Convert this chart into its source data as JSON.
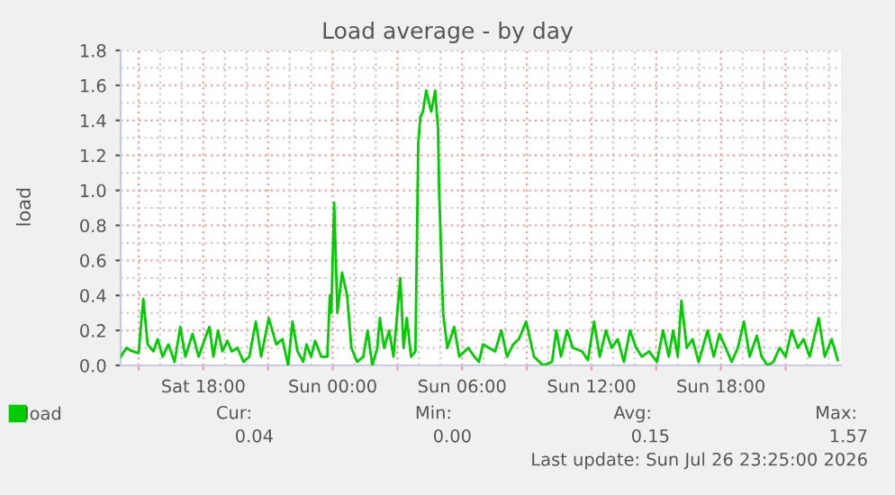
{
  "chart_data": {
    "type": "line",
    "title": "Load average - by day",
    "ylabel": "load",
    "xlim": [
      "2026-07-25T14:10",
      "2026-07-26T23:34"
    ],
    "ylim": [
      0,
      1.8
    ],
    "xticks": [
      {
        "value": "2026-07-25T15:00",
        "label": null
      },
      {
        "value": "2026-07-25T18:00",
        "label": "Sat 18:00"
      },
      {
        "value": "2026-07-25T21:00",
        "label": null
      },
      {
        "value": "2026-07-26T00:00",
        "label": "Sun 00:00"
      },
      {
        "value": "2026-07-26T03:00",
        "label": null
      },
      {
        "value": "2026-07-26T06:00",
        "label": "Sun 06:00"
      },
      {
        "value": "2026-07-26T09:00",
        "label": null
      },
      {
        "value": "2026-07-26T12:00",
        "label": "Sun 12:00"
      },
      {
        "value": "2026-07-26T15:00",
        "label": null
      },
      {
        "value": "2026-07-26T18:00",
        "label": "Sun 18:00"
      },
      {
        "value": "2026-07-26T21:00",
        "label": null
      }
    ],
    "yticks": [
      {
        "value": 0,
        "label": "0.0"
      },
      {
        "value": 0.2,
        "label": "0.2"
      },
      {
        "value": 0.4,
        "label": "0.4"
      },
      {
        "value": 0.6,
        "label": "0.6"
      },
      {
        "value": 0.8,
        "label": "0.8"
      },
      {
        "value": 1.0,
        "label": "1.0"
      },
      {
        "value": 1.2,
        "label": "1.2"
      },
      {
        "value": 1.4,
        "label": "1.4"
      },
      {
        "value": 1.6,
        "label": "1.6"
      },
      {
        "value": 1.8,
        "label": "1.8"
      }
    ],
    "grid": true,
    "legend": "bottom left",
    "marker": "none",
    "line_style": "solid",
    "series": [
      {
        "name": "load",
        "color": "#00cc00",
        "x": [
          "2026-07-25T14:10",
          "2026-07-25T14:26",
          "2026-07-25T14:43",
          "2026-07-25T15:00",
          "2026-07-25T15:13",
          "2026-07-25T15:25",
          "2026-07-25T15:41",
          "2026-07-25T15:53",
          "2026-07-25T16:07",
          "2026-07-25T16:23",
          "2026-07-25T16:40",
          "2026-07-25T16:56",
          "2026-07-25T17:10",
          "2026-07-25T17:30",
          "2026-07-25T17:47",
          "2026-07-25T18:04",
          "2026-07-25T18:17",
          "2026-07-25T18:28",
          "2026-07-25T18:41",
          "2026-07-25T18:53",
          "2026-07-25T19:07",
          "2026-07-25T19:19",
          "2026-07-25T19:35",
          "2026-07-25T19:52",
          "2026-07-25T20:08",
          "2026-07-25T20:26",
          "2026-07-25T20:41",
          "2026-07-25T21:02",
          "2026-07-25T21:23",
          "2026-07-25T21:40",
          "2026-07-25T21:56",
          "2026-07-25T22:08",
          "2026-07-25T22:22",
          "2026-07-25T22:38",
          "2026-07-25T22:47",
          "2026-07-25T23:00",
          "2026-07-25T23:11",
          "2026-07-25T23:28",
          "2026-07-25T23:45",
          "2026-07-25T23:52",
          "2026-07-25T23:56",
          "2026-07-26T00:04",
          "2026-07-26T00:13",
          "2026-07-26T00:26",
          "2026-07-26T00:40",
          "2026-07-26T00:52",
          "2026-07-26T01:08",
          "2026-07-26T01:25",
          "2026-07-26T01:37",
          "2026-07-26T01:50",
          "2026-07-26T02:04",
          "2026-07-26T02:11",
          "2026-07-26T02:23",
          "2026-07-26T02:37",
          "2026-07-26T02:49",
          "2026-07-26T03:08",
          "2026-07-26T03:17",
          "2026-07-26T03:26",
          "2026-07-26T03:38",
          "2026-07-26T03:50",
          "2026-07-26T03:58",
          "2026-07-26T04:04",
          "2026-07-26T04:11",
          "2026-07-26T04:20",
          "2026-07-26T04:34",
          "2026-07-26T04:45",
          "2026-07-26T04:53",
          "2026-07-26T04:56",
          "2026-07-26T05:07",
          "2026-07-26T05:19",
          "2026-07-26T05:38",
          "2026-07-26T05:52",
          "2026-07-26T06:17",
          "2026-07-26T06:34",
          "2026-07-26T06:47",
          "2026-07-26T06:58",
          "2026-07-26T07:15",
          "2026-07-26T07:32",
          "2026-07-26T07:49",
          "2026-07-26T08:05",
          "2026-07-26T08:22",
          "2026-07-26T08:38",
          "2026-07-26T08:58",
          "2026-07-26T09:20",
          "2026-07-26T09:45",
          "2026-07-26T10:10",
          "2026-07-26T10:22",
          "2026-07-26T10:35",
          "2026-07-26T10:52",
          "2026-07-26T11:08",
          "2026-07-26T11:34",
          "2026-07-26T11:50",
          "2026-07-26T12:07",
          "2026-07-26T12:23",
          "2026-07-26T12:40",
          "2026-07-26T12:56",
          "2026-07-26T13:13",
          "2026-07-26T13:30",
          "2026-07-26T13:47",
          "2026-07-26T14:04",
          "2026-07-26T14:20",
          "2026-07-26T14:40",
          "2026-07-26T15:02",
          "2026-07-26T15:19",
          "2026-07-26T15:35",
          "2026-07-26T15:47",
          "2026-07-26T16:00",
          "2026-07-26T16:10",
          "2026-07-26T16:25",
          "2026-07-26T16:41",
          "2026-07-26T16:58",
          "2026-07-26T17:23",
          "2026-07-26T17:40",
          "2026-07-26T17:56",
          "2026-07-26T18:13",
          "2026-07-26T18:30",
          "2026-07-26T18:47",
          "2026-07-26T19:04",
          "2026-07-26T19:20",
          "2026-07-26T19:40",
          "2026-07-26T19:53",
          "2026-07-26T20:10",
          "2026-07-26T20:26",
          "2026-07-26T20:43",
          "2026-07-26T21:00",
          "2026-07-26T21:17",
          "2026-07-26T21:34",
          "2026-07-26T21:50",
          "2026-07-26T22:07",
          "2026-07-26T22:32",
          "2026-07-26T22:49",
          "2026-07-26T23:08",
          "2026-07-26T23:25"
        ],
        "values": [
          0.05,
          0.1,
          0.08,
          0.07,
          0.38,
          0.12,
          0.08,
          0.15,
          0.05,
          0.12,
          0.02,
          0.22,
          0.05,
          0.18,
          0.05,
          0.15,
          0.22,
          0.05,
          0.2,
          0.08,
          0.14,
          0.08,
          0.1,
          0.02,
          0.05,
          0.25,
          0.05,
          0.27,
          0.12,
          0.15,
          0.0,
          0.25,
          0.08,
          0.02,
          0.12,
          0.05,
          0.14,
          0.05,
          0.05,
          0.4,
          0.3,
          0.93,
          0.3,
          0.53,
          0.4,
          0.1,
          0.02,
          0.05,
          0.2,
          0.0,
          0.1,
          0.27,
          0.1,
          0.2,
          0.05,
          0.5,
          0.1,
          0.27,
          0.05,
          0.08,
          1.27,
          1.42,
          1.45,
          1.57,
          1.45,
          1.57,
          1.35,
          1.0,
          0.3,
          0.1,
          0.22,
          0.05,
          0.1,
          0.05,
          0.02,
          0.12,
          0.1,
          0.08,
          0.2,
          0.05,
          0.12,
          0.15,
          0.25,
          0.05,
          0.0,
          0.02,
          0.2,
          0.05,
          0.2,
          0.1,
          0.08,
          0.03,
          0.25,
          0.05,
          0.2,
          0.1,
          0.15,
          0.02,
          0.2,
          0.1,
          0.05,
          0.08,
          0.02,
          0.2,
          0.05,
          0.2,
          0.05,
          0.37,
          0.1,
          0.15,
          0.02,
          0.2,
          0.05,
          0.18,
          0.1,
          0.02,
          0.1,
          0.25,
          0.05,
          0.17,
          0.05,
          0.0,
          0.02,
          0.1,
          0.05,
          0.2,
          0.1,
          0.15,
          0.05,
          0.27,
          0.05,
          0.15,
          0.03
        ]
      }
    ],
    "annotations": [
      "Cur:",
      "Min:",
      "Avg:",
      "Max:",
      "0.04",
      "0.00",
      "0.15",
      "1.57",
      "Last update: Sun Jul 26 23:25:00 2026"
    ]
  }
}
